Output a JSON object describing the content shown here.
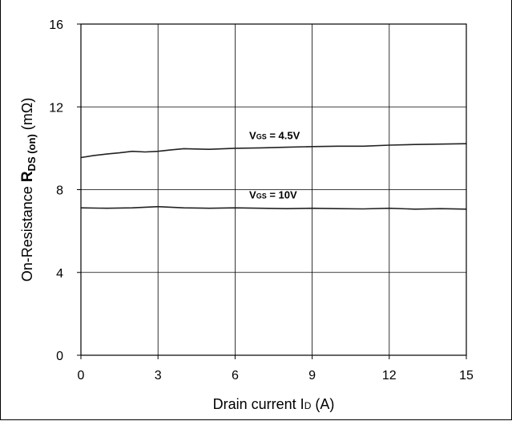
{
  "chart_data": {
    "type": "line",
    "xlabel": {
      "text": "Drain current I",
      "sub": "D",
      "unit": " (A)"
    },
    "ylabel": {
      "prefix": "On-Resistance ",
      "symbol": "R",
      "sub": "DS (on)",
      "unit": " (mΩ)"
    },
    "xlim": [
      0,
      15
    ],
    "ylim": [
      0,
      16
    ],
    "xticks": [
      0,
      3,
      6,
      9,
      12,
      15
    ],
    "yticks": [
      0,
      4,
      8,
      12,
      16
    ],
    "grid": true,
    "series": [
      {
        "name": "VGS = 4.5V",
        "label_main": "V",
        "label_sub": "GS",
        "label_rest": " = 4.5V",
        "x": [
          0,
          0.5,
          1,
          1.5,
          2,
          2.5,
          3,
          3.5,
          4,
          5,
          6,
          7,
          8,
          9,
          10,
          11,
          12,
          13,
          14,
          15
        ],
        "y": [
          9.55,
          9.65,
          9.72,
          9.78,
          9.85,
          9.82,
          9.85,
          9.92,
          9.98,
          9.95,
          10.0,
          10.02,
          10.05,
          10.08,
          10.1,
          10.1,
          10.15,
          10.18,
          10.2,
          10.22
        ]
      },
      {
        "name": "VGS = 10V",
        "label_main": "V",
        "label_sub": "GS",
        "label_rest": " = 10V",
        "x": [
          0,
          1,
          2,
          3,
          4,
          5,
          6,
          7,
          8,
          9,
          10,
          11,
          12,
          13,
          14,
          15
        ],
        "y": [
          7.12,
          7.1,
          7.12,
          7.18,
          7.12,
          7.1,
          7.12,
          7.1,
          7.08,
          7.1,
          7.08,
          7.07,
          7.1,
          7.06,
          7.08,
          7.06
        ]
      }
    ]
  }
}
